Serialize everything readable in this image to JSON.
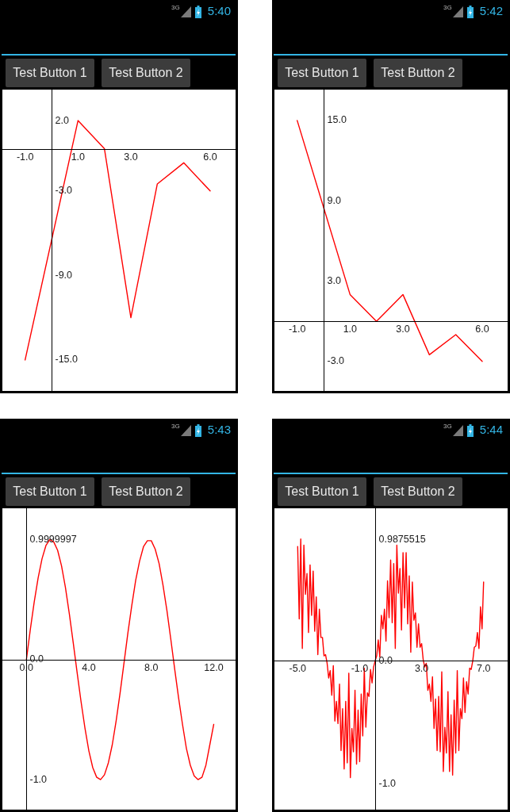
{
  "chart_data": [
    {
      "type": "line",
      "annotations": [
        "3G",
        "5:40",
        "Test Button 1",
        "Test Button 2"
      ],
      "x": [
        -1,
        1,
        2,
        3,
        4,
        5,
        6
      ],
      "values": [
        -15,
        2,
        0,
        -12,
        -2.5,
        -1,
        -3
      ],
      "color": "#ff0000",
      "xlim": [
        -1.86,
        6.96
      ],
      "ylim": [
        -17.2,
        4.2
      ],
      "xticks": [
        {
          "value": -1,
          "label": "-1.0"
        },
        {
          "value": 1,
          "label": "1.0"
        },
        {
          "value": 3,
          "label": "3.0"
        },
        {
          "value": 6,
          "label": "6.0"
        }
      ],
      "yticks": [
        {
          "value": 2,
          "label": "2.0"
        },
        {
          "value": -3,
          "label": "-3.0"
        },
        {
          "value": -9,
          "label": "-9.0"
        },
        {
          "value": -15,
          "label": "-15.0"
        }
      ]
    },
    {
      "type": "line",
      "annotations": [
        "3G",
        "5:42",
        "Test Button 1",
        "Test Button 2"
      ],
      "x": [
        -1,
        1,
        2,
        3,
        4,
        5,
        6
      ],
      "values": [
        15,
        2,
        0,
        2,
        -2.5,
        -1,
        -3
      ],
      "color": "#ff0000",
      "xlim": [
        -1.86,
        6.96
      ],
      "ylim": [
        -5.2,
        17.3
      ],
      "xticks": [
        {
          "value": -1,
          "label": "-1.0"
        },
        {
          "value": 1,
          "label": "1.0"
        },
        {
          "value": 3,
          "label": "3.0"
        },
        {
          "value": 6,
          "label": "6.0"
        }
      ],
      "yticks": [
        {
          "value": 15,
          "label": "15.0"
        },
        {
          "value": 9,
          "label": "9.0"
        },
        {
          "value": 3,
          "label": "3.0"
        },
        {
          "value": -3,
          "label": "-3.0"
        }
      ]
    },
    {
      "type": "line",
      "annotations": [
        "3G",
        "5:43",
        "Test Button 1",
        "Test Button 2"
      ],
      "x": [
        0,
        0.25,
        0.5,
        0.75,
        1,
        1.25,
        1.5,
        1.75,
        2,
        2.25,
        2.5,
        2.75,
        3,
        3.25,
        3.5,
        3.75,
        4,
        4.25,
        4.5,
        4.75,
        5,
        5.25,
        5.5,
        5.75,
        6,
        6.25,
        6.5,
        6.75,
        7,
        7.25,
        7.5,
        7.75,
        8,
        8.25,
        8.5,
        8.75,
        9,
        9.25,
        9.5,
        9.75,
        10,
        10.25,
        10.5,
        10.75,
        11,
        11.25,
        11.5,
        11.75,
        12
      ],
      "values": [
        0,
        0.25,
        0.48,
        0.68,
        0.84,
        0.95,
        1,
        0.98,
        0.91,
        0.78,
        0.6,
        0.38,
        0.14,
        -0.11,
        -0.35,
        -0.57,
        -0.76,
        -0.9,
        -0.98,
        -1,
        -0.96,
        -0.86,
        -0.71,
        -0.51,
        -0.28,
        -0.03,
        0.22,
        0.45,
        0.66,
        0.82,
        0.94,
        0.99,
        0.99,
        0.92,
        0.8,
        0.62,
        0.41,
        0.17,
        -0.08,
        -0.32,
        -0.54,
        -0.74,
        -0.88,
        -0.97,
        -1,
        -0.98,
        -0.88,
        -0.71,
        -0.54
      ],
      "color": "#ff0000",
      "xlim": [
        -1.54,
        13.4
      ],
      "ylim": [
        -1.25,
        1.26
      ],
      "xticks": [
        {
          "value": 0,
          "label": "0.0"
        },
        {
          "value": 4,
          "label": "4.0"
        },
        {
          "value": 8,
          "label": "8.0"
        },
        {
          "value": 12,
          "label": "12.0"
        }
      ],
      "yticks": [
        0.9999997,
        {
          "value": 0,
          "label": "0.0"
        },
        {
          "value": -1,
          "label": "-1.0"
        }
      ]
    },
    {
      "type": "line",
      "annotations": [
        "3G",
        "5:44",
        "Test Button 1",
        "Test Button 2"
      ],
      "x": [
        -5,
        -4.9,
        -4.8,
        -4.7,
        -4.6,
        -4.5,
        -4.4,
        -4.3,
        -4.2,
        -4.1,
        -4,
        -3.9,
        -3.8,
        -3.7,
        -3.6,
        -3.5,
        -3.4,
        -3.3,
        -3.2,
        -3.1,
        -3,
        -2.9,
        -2.8,
        -2.7,
        -2.6,
        -2.5,
        -2.4,
        -2.3,
        -2.2,
        -2.1,
        -2,
        -1.9,
        -1.8,
        -1.7,
        -1.6,
        -1.5,
        -1.4,
        -1.3,
        -1.2,
        -1.1,
        -1,
        -0.9,
        -0.8,
        -0.7,
        -0.6,
        -0.5,
        -0.4,
        -0.3,
        -0.2,
        -0.1,
        0,
        0.1,
        0.2,
        0.3,
        0.4,
        0.5,
        0.6,
        0.7,
        0.8,
        0.9,
        1,
        1.1,
        1.2,
        1.3,
        1.4,
        1.5,
        1.6,
        1.7,
        1.8,
        1.9,
        2,
        2.1,
        2.2,
        2.3,
        2.4,
        2.5,
        2.6,
        2.7,
        2.8,
        2.9,
        3,
        3.1,
        3.2,
        3.3,
        3.4,
        3.5,
        3.6,
        3.7,
        3.8,
        3.9,
        4,
        4.1,
        4.2,
        4.3,
        4.4,
        4.5,
        4.6,
        4.7,
        4.8,
        4.9,
        5,
        5.1,
        5.2,
        5.3,
        5.4,
        5.5,
        5.6,
        5.7,
        5.8,
        5.9,
        6,
        6.1,
        6.2,
        6.3,
        6.4,
        6.5,
        6.6,
        6.7,
        6.8,
        6.9,
        7
      ],
      "values": [
        0.93,
        0.34,
        0.99,
        0.1,
        0.94,
        0.54,
        0.71,
        0.23,
        0.78,
        0.37,
        0.73,
        0.24,
        0.52,
        0.05,
        0.42,
        0.19,
        0.19,
        0.04,
        0.05,
        -0.02,
        -0.14,
        -0.08,
        -0.28,
        -0.04,
        -0.49,
        -0.33,
        -0.51,
        -0.19,
        -0.73,
        -0.39,
        -0.88,
        -0.33,
        -0.83,
        -0.1,
        -0.95,
        -0.55,
        -0.74,
        -0.24,
        -0.84,
        -0.4,
        -0.82,
        -0.27,
        -0.61,
        -0.06,
        -0.54,
        -0.26,
        -0.29,
        -0.07,
        -0.18,
        -0.05,
        0,
        0.04,
        0.17,
        0.03,
        0.37,
        0.26,
        0.42,
        0.16,
        0.65,
        0.35,
        0.82,
        0.31,
        0.79,
        0.1,
        0.94,
        0.55,
        0.75,
        0.25,
        0.88,
        0.43,
        0.88,
        0.3,
        0.69,
        0.07,
        0.64,
        0.33,
        0.39,
        0.11,
        0.3,
        0.11,
        0.14,
        0.01,
        -0.05,
        -0.02,
        -0.24,
        -0.19,
        -0.33,
        -0.13,
        -0.55,
        -0.31,
        -0.73,
        -0.29,
        -0.74,
        -0.09,
        -0.9,
        -0.54,
        -0.75,
        -0.25,
        -0.9,
        -0.44,
        -0.93,
        -0.32,
        -0.75,
        -0.08,
        -0.73,
        -0.39,
        -0.47,
        -0.14,
        -0.42,
        -0.17,
        -0.27,
        -0.06,
        -0.07,
        0,
        0.11,
        0.12,
        0.23,
        0.1,
        0.44,
        0.26,
        0.64
      ],
      "color": "#ff0000",
      "xlim": [
        -6.5,
        8.55
      ],
      "ylim": [
        -1.21,
        1.24
      ],
      "xticks": [
        {
          "value": -5,
          "label": "-5.0"
        },
        {
          "value": -1,
          "label": "-1.0"
        },
        {
          "value": 3,
          "label": "3.0"
        },
        {
          "value": 7,
          "label": "7.0"
        }
      ],
      "yticks": [
        0.9875515,
        {
          "value": 0,
          "label": "0.0"
        },
        {
          "value": -1,
          "label": "-1.0"
        }
      ]
    }
  ]
}
